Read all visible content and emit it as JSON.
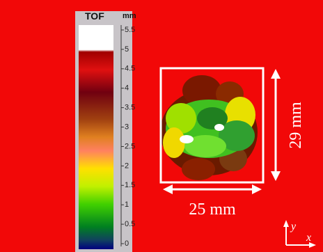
{
  "colorbar": {
    "title": "TOF",
    "unit": "mm",
    "ticks": [
      "5.5",
      "5",
      "4.5",
      "4",
      "3.5",
      "3",
      "2.5",
      "2",
      "1.5",
      "1",
      "0.5",
      "0"
    ]
  },
  "dimensions": {
    "width": "25 mm",
    "height": "29 mm"
  },
  "axes": {
    "y": "y",
    "x": "x"
  }
}
